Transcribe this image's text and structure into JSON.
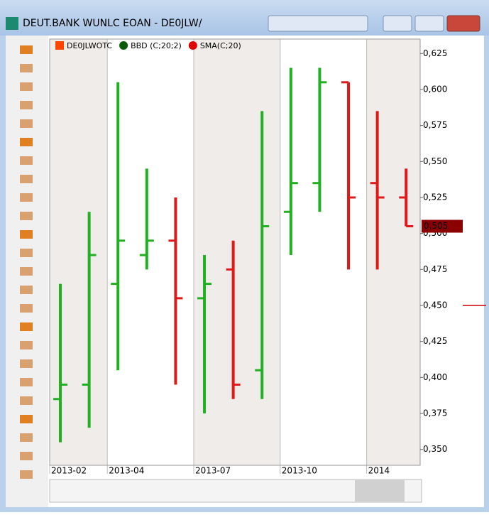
{
  "window_title": "DEUT.BANK WUNLC EOAN - DE0JLW/",
  "chart_data": {
    "type": "ohlc",
    "legend": [
      {
        "name": "DE0JLWOTC",
        "color": "#ff4500"
      },
      {
        "name": "BBD (C;20;2)",
        "color": "#0a5a0a"
      },
      {
        "name": "SMA(C;20)",
        "color": "#e00000"
      }
    ],
    "categories": [
      null,
      null,
      null,
      null,
      null,
      null,
      null,
      null,
      null,
      null,
      null,
      null,
      null
    ],
    "open": [
      0.385,
      0.395,
      0.465,
      0.485,
      0.495,
      0.455,
      0.475,
      0.405,
      0.515,
      0.535,
      0.605,
      0.535,
      0.525
    ],
    "high": [
      0.465,
      0.515,
      0.605,
      0.545,
      0.525,
      0.485,
      0.495,
      0.585,
      0.615,
      0.615,
      0.605,
      0.585,
      0.545
    ],
    "low": [
      0.355,
      0.365,
      0.405,
      0.475,
      0.395,
      0.375,
      0.385,
      0.385,
      0.485,
      0.515,
      0.475,
      0.475,
      0.505
    ],
    "close": [
      0.395,
      0.485,
      0.495,
      0.495,
      0.455,
      0.465,
      0.395,
      0.505,
      0.535,
      0.605,
      0.525,
      0.525,
      0.505
    ],
    "up_color": "#22b022",
    "down_color": "#e01818",
    "ylim": [
      0.339,
      0.635
    ],
    "yticks": [
      {
        "value": 0.35,
        "label": "0,350"
      },
      {
        "value": 0.375,
        "label": "0,375"
      },
      {
        "value": 0.4,
        "label": "0,400"
      },
      {
        "value": 0.425,
        "label": "0,425"
      },
      {
        "value": 0.45,
        "label": "0,450"
      },
      {
        "value": 0.475,
        "label": "0,475"
      },
      {
        "value": 0.5,
        "label": "0,500"
      },
      {
        "value": 0.525,
        "label": "0,525"
      },
      {
        "value": 0.55,
        "label": "0,550"
      },
      {
        "value": 0.575,
        "label": "0,575"
      },
      {
        "value": 0.6,
        "label": "0,600"
      },
      {
        "value": 0.625,
        "label": "0,625"
      }
    ],
    "xticks": [
      {
        "value": 0,
        "label": "2013-02"
      },
      {
        "value": 2,
        "label": "2013-04"
      },
      {
        "value": 5,
        "label": "2013-07"
      },
      {
        "value": 8,
        "label": "2013-10"
      },
      {
        "value": 11,
        "label": "2014"
      }
    ],
    "last_value": {
      "value": 0.505,
      "label": "0,505"
    },
    "pointer_value": 0.45
  }
}
